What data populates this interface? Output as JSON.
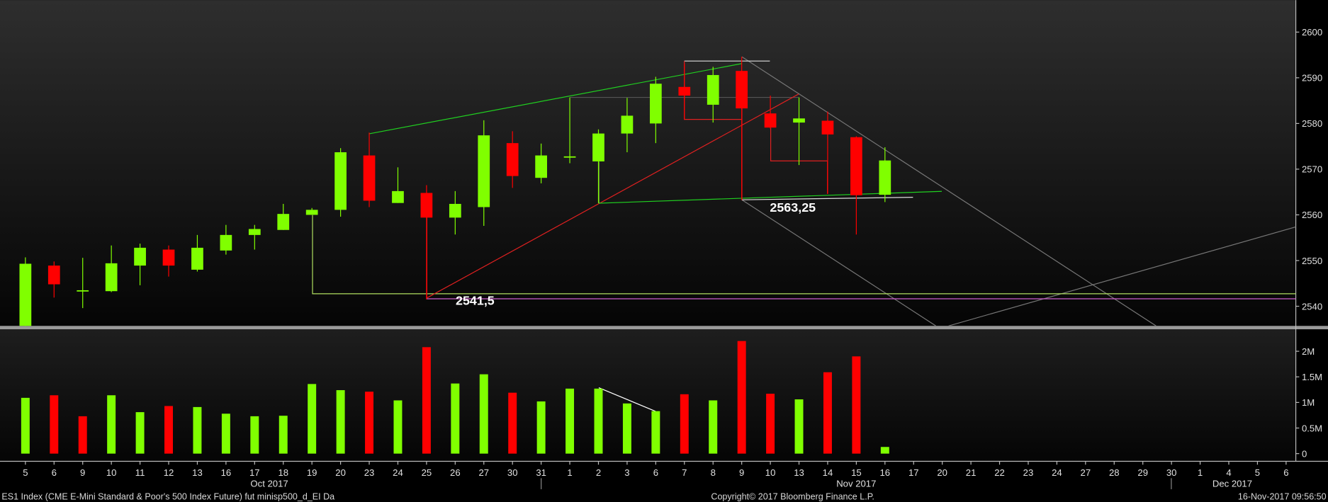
{
  "chart_data": [
    {
      "type": "candlestick",
      "categories": [
        "5",
        "6",
        "9",
        "10",
        "11",
        "12",
        "13",
        "16",
        "17",
        "18",
        "19",
        "20",
        "23",
        "24",
        "25",
        "26",
        "27",
        "30",
        "31",
        "1",
        "2",
        "3",
        "6",
        "7",
        "8",
        "9",
        "10",
        "13",
        "14",
        "15",
        "16",
        "17",
        "20",
        "21",
        "22",
        "23",
        "24",
        "27",
        "28",
        "29",
        "30",
        "1",
        "4",
        "5",
        "6"
      ],
      "open": [
        2534.8,
        2548.9,
        2543.5,
        2543.3,
        2548.9,
        2552.4,
        2548.0,
        2552.2,
        2555.6,
        2556.7,
        2560.0,
        2561.1,
        2573.0,
        2562.6,
        2564.8,
        2559.4,
        2561.7,
        2575.7,
        2568.1,
        2572.8,
        2571.7,
        2577.8,
        2580.0,
        2588.0,
        2584.1,
        2591.5,
        2582.2,
        2580.2,
        2580.6,
        2577.0,
        2564.4,
        null,
        null,
        null,
        null,
        null,
        null,
        null,
        null,
        null,
        null,
        null,
        null,
        null,
        null
      ],
      "high": [
        2550.7,
        2549.8,
        2550.6,
        2553.3,
        2553.7,
        2553.3,
        2555.6,
        2557.8,
        2557.8,
        2562.4,
        2561.5,
        2574.6,
        2578.0,
        2570.4,
        2566.5,
        2565.2,
        2580.7,
        2578.3,
        2575.6,
        2585.7,
        2578.7,
        2585.6,
        2590.2,
        2593.1,
        2592.4,
        2594.6,
        2586.1,
        2585.7,
        2582.6,
        2577.2,
        2574.8,
        null,
        null,
        null,
        null,
        null,
        null,
        null,
        null,
        null,
        null,
        null,
        null,
        null,
        null
      ],
      "low": [
        2534.5,
        2541.9,
        2539.6,
        2543.1,
        2544.6,
        2546.5,
        2547.6,
        2551.3,
        2552.4,
        2556.7,
        2560.0,
        2559.6,
        2561.7,
        2562.6,
        2541.5,
        2555.7,
        2557.6,
        2565.9,
        2566.9,
        2571.3,
        2562.6,
        2573.7,
        2575.7,
        2580.9,
        2580.2,
        2563.25,
        2578.9,
        2570.9,
        2564.6,
        2555.7,
        2562.8,
        null,
        null,
        null,
        null,
        null,
        null,
        null,
        null,
        null,
        null,
        null,
        null,
        null,
        null
      ],
      "close": [
        2549.3,
        2544.8,
        2543.5,
        2549.4,
        2552.8,
        2548.9,
        2552.8,
        2555.6,
        2556.9,
        2560.2,
        2561.1,
        2573.7,
        2563.1,
        2565.2,
        2559.4,
        2562.4,
        2577.4,
        2568.5,
        2573.0,
        2572.8,
        2577.8,
        2581.7,
        2588.7,
        2586.1,
        2590.6,
        2583.3,
        2579.1,
        2581.1,
        2577.6,
        2564.3,
        2571.9,
        null,
        null,
        null,
        null,
        null,
        null,
        null,
        null,
        null,
        null,
        null,
        null,
        null,
        null
      ],
      "up_color": "#80ff00",
      "down_color": "#ff0000",
      "ylim": [
        2535.7,
        2607.0
      ],
      "yticks": [
        2540,
        2550,
        2560,
        2570,
        2580,
        2590,
        2600
      ],
      "annotations": [
        "2541,5",
        "2563,25"
      ]
    },
    {
      "type": "bar",
      "categories": [
        "5",
        "6",
        "9",
        "10",
        "11",
        "12",
        "13",
        "16",
        "17",
        "18",
        "19",
        "20",
        "23",
        "24",
        "25",
        "26",
        "27",
        "30",
        "31",
        "1",
        "2",
        "3",
        "6",
        "7",
        "8",
        "9",
        "10",
        "13",
        "14",
        "15",
        "16",
        "17",
        "20",
        "21",
        "22",
        "23",
        "24",
        "27",
        "28",
        "29",
        "30",
        "1",
        "4",
        "5",
        "6"
      ],
      "values": [
        1090000,
        1140000,
        730000,
        1140000,
        810000,
        930000,
        910000,
        780000,
        730000,
        740000,
        1360000,
        1240000,
        1210000,
        1040000,
        2080000,
        1370000,
        1550000,
        1190000,
        1020000,
        1270000,
        1270000,
        980000,
        830000,
        1160000,
        1040000,
        2200000,
        1170000,
        1060000,
        1590000,
        1900000,
        130000,
        null,
        null,
        null,
        null,
        null,
        null,
        null,
        null,
        null,
        null,
        null,
        null,
        null,
        null
      ],
      "colors": [
        "#80ff00",
        "#ff0000",
        "#ff0000",
        "#80ff00",
        "#80ff00",
        "#ff0000",
        "#80ff00",
        "#80ff00",
        "#80ff00",
        "#80ff00",
        "#80ff00",
        "#80ff00",
        "#ff0000",
        "#80ff00",
        "#ff0000",
        "#80ff00",
        "#80ff00",
        "#ff0000",
        "#80ff00",
        "#80ff00",
        "#80ff00",
        "#80ff00",
        "#80ff00",
        "#ff0000",
        "#80ff00",
        "#ff0000",
        "#ff0000",
        "#80ff00",
        "#ff0000",
        "#ff0000",
        "#80ff00",
        null,
        null,
        null,
        null,
        null,
        null,
        null,
        null,
        null,
        null,
        null,
        null,
        null,
        null
      ],
      "ylim": [
        -150000,
        2380000
      ],
      "yticks": [
        0,
        {
          "value": 500000,
          "label": "0.5M"
        },
        {
          "value": 1000000,
          "label": "1M"
        },
        {
          "value": 1500000,
          "label": "1.5M"
        },
        {
          "value": 2000000,
          "label": "2M"
        }
      ],
      "month_labels": [
        "Oct 2017",
        "Nov 2017",
        "Dec 2017"
      ]
    }
  ],
  "footer": {
    "left": "ES1 Index (CME E-Mini Standard & Poor's 500 Index Future) fut minisp500_d_EI  Da",
    "center": "Copyright© 2017 Bloomberg Finance L.P.",
    "right": "16-Nov-2017 09:56:50"
  }
}
